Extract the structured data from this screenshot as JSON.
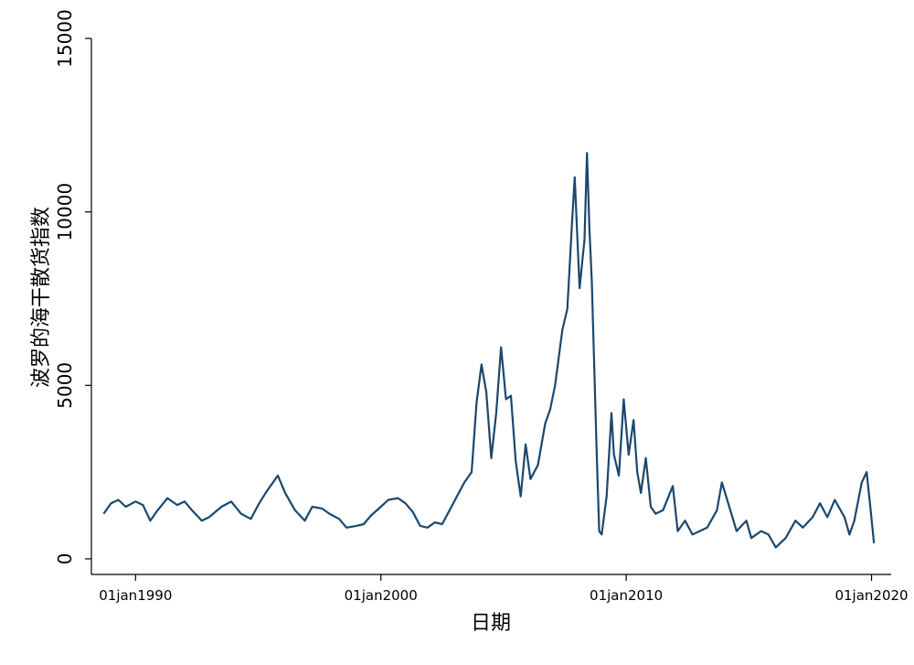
{
  "chart_data": {
    "type": "line",
    "y_label": "波罗的海干散货指数",
    "x_label": "日期",
    "xlim": [
      1988.2,
      2020.8
    ],
    "xticks": [
      {
        "value": 1990,
        "label": "01jan1990"
      },
      {
        "value": 2000,
        "label": "01jan2000"
      },
      {
        "value": 2010,
        "label": "01jan2010"
      },
      {
        "value": 2020,
        "label": "01jan2020"
      }
    ],
    "ylim": [
      -450,
      15000
    ],
    "yticks": [
      0,
      5000,
      10000,
      15000
    ],
    "grid": false,
    "series": [
      {
        "color": "#1a476f",
        "x": [
          1988.7,
          1989.0,
          1989.3,
          1989.6,
          1990.0,
          1990.3,
          1990.6,
          1990.9,
          1991.3,
          1991.7,
          1992.0,
          1992.3,
          1992.7,
          1993.0,
          1993.5,
          1993.9,
          1994.3,
          1994.7,
          1995.0,
          1995.3,
          1995.6,
          1995.8,
          1996.1,
          1996.5,
          1996.9,
          1997.2,
          1997.6,
          1997.9,
          1998.3,
          1998.6,
          1999.0,
          1999.3,
          1999.6,
          2000.0,
          2000.3,
          2000.7,
          2001.0,
          2001.3,
          2001.6,
          2001.9,
          2002.2,
          2002.5,
          2002.8,
          2003.1,
          2003.4,
          2003.7,
          2003.9,
          2004.1,
          2004.3,
          2004.5,
          2004.7,
          2004.9,
          2005.1,
          2005.3,
          2005.5,
          2005.7,
          2005.9,
          2006.1,
          2006.4,
          2006.7,
          2006.9,
          2007.1,
          2007.4,
          2007.6,
          2007.8,
          2007.9,
          2008.1,
          2008.3,
          2008.4,
          2008.5,
          2008.6,
          2008.7,
          2008.8,
          2008.9,
          2009.0,
          2009.2,
          2009.4,
          2009.5,
          2009.7,
          2009.9,
          2010.1,
          2010.3,
          2010.45,
          2010.6,
          2010.8,
          2011.0,
          2011.2,
          2011.5,
          2011.9,
          2012.1,
          2012.4,
          2012.7,
          2013.0,
          2013.3,
          2013.7,
          2013.9,
          2014.2,
          2014.5,
          2014.9,
          2015.1,
          2015.5,
          2015.8,
          2016.1,
          2016.5,
          2016.9,
          2017.2,
          2017.6,
          2017.9,
          2018.2,
          2018.5,
          2018.9,
          2019.1,
          2019.3,
          2019.6,
          2019.8,
          2019.95,
          2020.1
        ],
        "values": [
          1300,
          1600,
          1700,
          1500,
          1650,
          1550,
          1100,
          1400,
          1750,
          1550,
          1650,
          1400,
          1100,
          1200,
          1500,
          1650,
          1300,
          1150,
          1550,
          1900,
          2200,
          2400,
          1900,
          1400,
          1100,
          1500,
          1450,
          1300,
          1150,
          900,
          950,
          1000,
          1250,
          1500,
          1700,
          1750,
          1600,
          1350,
          950,
          900,
          1050,
          1000,
          1400,
          1800,
          2200,
          2500,
          4500,
          5600,
          4800,
          2900,
          4200,
          6100,
          4600,
          4700,
          2800,
          1800,
          3300,
          2300,
          2700,
          3900,
          4300,
          5000,
          6600,
          7200,
          9800,
          11000,
          7800,
          9200,
          11700,
          9500,
          8000,
          5500,
          3000,
          800,
          700,
          1800,
          4200,
          3000,
          2400,
          4600,
          3000,
          4000,
          2500,
          1900,
          2900,
          1500,
          1300,
          1400,
          2100,
          800,
          1100,
          700,
          800,
          900,
          1400,
          2200,
          1500,
          800,
          1100,
          600,
          800,
          700,
          330,
          600,
          1100,
          900,
          1200,
          1600,
          1200,
          1700,
          1200,
          700,
          1100,
          2200,
          2500,
          1500,
          450
        ]
      }
    ]
  }
}
